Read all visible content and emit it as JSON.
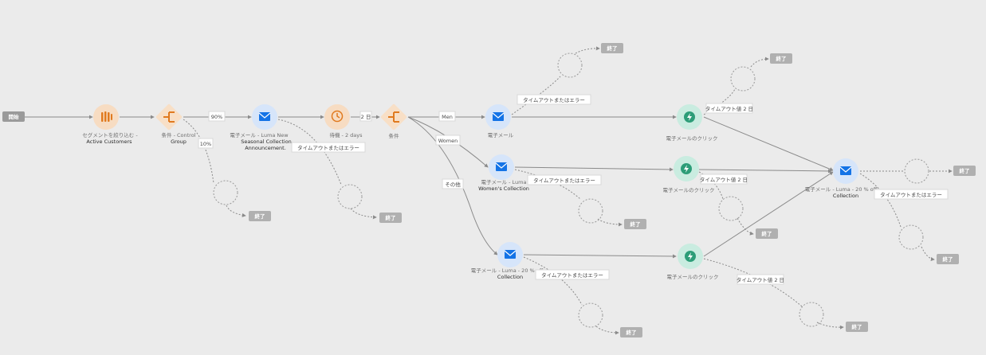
{
  "start": {
    "label": "開始"
  },
  "end_label": "終了",
  "timeout_label": "タイムアウトまたはエラー",
  "nodes": {
    "segment": {
      "icon": "segment-icon",
      "line1": "セグメントを絞り込む -",
      "line2": "Active Customers"
    },
    "condition1": {
      "icon": "condition-icon",
      "line1": "条件 - Control",
      "line2": "Group"
    },
    "email1": {
      "icon": "envelope-icon",
      "line1": "電子メール - Luma New",
      "line2": "Seasonal Collection",
      "line3": "Announcement."
    },
    "wait": {
      "icon": "clock-icon",
      "line1": "待機 - 2 days"
    },
    "condition2": {
      "icon": "condition-icon",
      "line1": "条件"
    },
    "email_men": {
      "icon": "envelope-icon",
      "line1": "電子メール"
    },
    "email_women": {
      "icon": "envelope-icon",
      "line1": "電子メール - Luma",
      "line2": "Women's Collection"
    },
    "email_other": {
      "icon": "envelope-icon",
      "line1": "電子メール - Luma - 20 % off",
      "line2": "Collection"
    },
    "click1": {
      "icon": "click-reaction-icon",
      "line1": "電子メールのクリック"
    },
    "click2": {
      "icon": "click-reaction-icon",
      "line1": "電子メールのクリック"
    },
    "click3": {
      "icon": "click-reaction-icon",
      "line1": "電子メールのクリック"
    },
    "email_final": {
      "icon": "envelope-icon",
      "line1": "電子メール - Luma - 20 % off",
      "line2": "Collection"
    }
  },
  "edges": {
    "pct90": "90%",
    "pct10": "10%",
    "wait_chip": "2 日",
    "men": "Men",
    "women": "Women",
    "other": "その他",
    "timeout2d": "タイムアウト値 2 日"
  },
  "colors": {
    "segment_bg": "#f7dcc2",
    "segment_fg": "#e07a1f",
    "condition_bg": "#f8dfc6",
    "condition_fg": "#e07a1f",
    "email_bg": "#d6e5fa",
    "email_fg": "#1473e6",
    "reaction_bg": "#c9ece0",
    "reaction_fg": "#2d9d78",
    "end_bg": "#b0b0b0",
    "start_bg": "#9a9a9a"
  }
}
